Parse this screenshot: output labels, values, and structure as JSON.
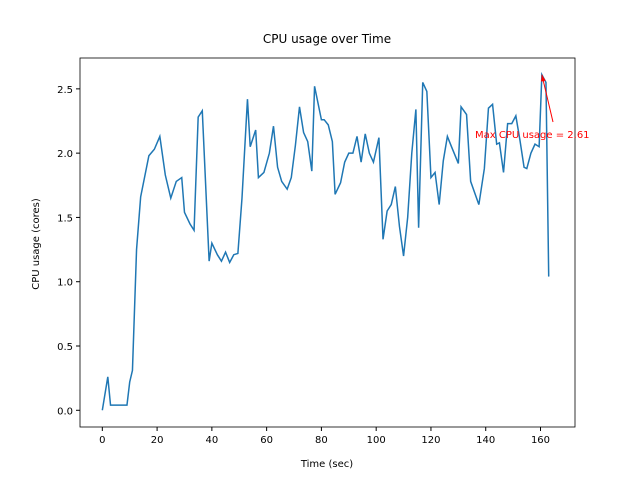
{
  "chart_data": {
    "type": "line",
    "title": "CPU usage over Time",
    "xlabel": "Time (sec)",
    "ylabel": "CPU usage (cores)",
    "x": [
      0,
      2,
      3,
      5,
      7,
      9,
      10,
      11,
      12.5,
      14,
      17,
      19,
      21,
      23,
      25,
      27,
      29,
      30,
      32,
      33.5,
      35,
      36.5,
      39,
      40,
      42,
      43.5,
      45,
      46.5,
      48,
      49.5,
      51,
      53,
      54,
      56,
      57,
      59,
      61,
      62.5,
      64,
      65.5,
      67.5,
      69,
      70.5,
      72,
      73.5,
      75,
      76.5,
      77.5,
      80,
      81,
      82.5,
      84,
      85,
      87,
      88.5,
      90,
      91.5,
      93,
      94.5,
      96,
      97.5,
      99,
      101,
      102.5,
      104,
      105.5,
      107,
      108.5,
      110,
      111.5,
      113,
      114.5,
      115.5,
      117,
      118.5,
      120,
      121.5,
      123,
      124.5,
      126,
      127.5,
      130,
      131,
      133,
      134.5,
      137.5,
      139.5,
      141,
      142.5,
      144,
      145,
      146.5,
      148,
      149.5,
      151,
      152.5,
      154,
      155,
      156.5,
      158,
      159.5,
      160.5,
      162,
      163
    ],
    "series": [
      {
        "name": "CPU usage",
        "color": "#1f77b4",
        "values": [
          0,
          0.26,
          0.04,
          0.04,
          0.04,
          0.04,
          0.22,
          0.31,
          1.25,
          1.66,
          1.98,
          2.03,
          2.13,
          1.83,
          1.65,
          1.78,
          1.81,
          1.54,
          1.45,
          1.4,
          2.28,
          2.33,
          1.16,
          1.3,
          1.21,
          1.16,
          1.23,
          1.15,
          1.21,
          1.22,
          1.65,
          2.42,
          2.05,
          2.18,
          1.81,
          1.85,
          2.0,
          2.21,
          1.89,
          1.78,
          1.72,
          1.81,
          2.06,
          2.36,
          2.16,
          2.09,
          1.86,
          2.52,
          2.26,
          2.26,
          2.22,
          2.09,
          1.68,
          1.77,
          1.93,
          2.0,
          2.0,
          2.13,
          1.93,
          2.15,
          2.0,
          1.93,
          2.12,
          1.33,
          1.55,
          1.6,
          1.74,
          1.43,
          1.2,
          1.5,
          2.0,
          2.34,
          1.42,
          2.55,
          2.48,
          1.81,
          1.85,
          1.6,
          1.94,
          2.13,
          2.05,
          1.92,
          2.36,
          2.3,
          1.78,
          1.6,
          1.88,
          2.35,
          2.38,
          2.07,
          2.08,
          1.85,
          2.23,
          2.23,
          2.29,
          2.1,
          1.89,
          1.88,
          2.0,
          2.07,
          2.05,
          2.61,
          2.55,
          1.04
        ]
      }
    ],
    "xlim": [
      -8.15,
      172.6
    ],
    "ylim": [
      -0.13,
      2.74
    ],
    "xticks": [
      0,
      20,
      40,
      60,
      80,
      100,
      120,
      140,
      160
    ],
    "yticks": [
      {
        "value": 0,
        "label": "0.0"
      },
      0.5,
      {
        "value": 1,
        "label": "1.0"
      },
      1.5,
      {
        "value": 2,
        "label": "2.0"
      },
      2.5
    ],
    "annotation": {
      "text": "Max CPU usage = 2.61",
      "color": "red"
    }
  }
}
